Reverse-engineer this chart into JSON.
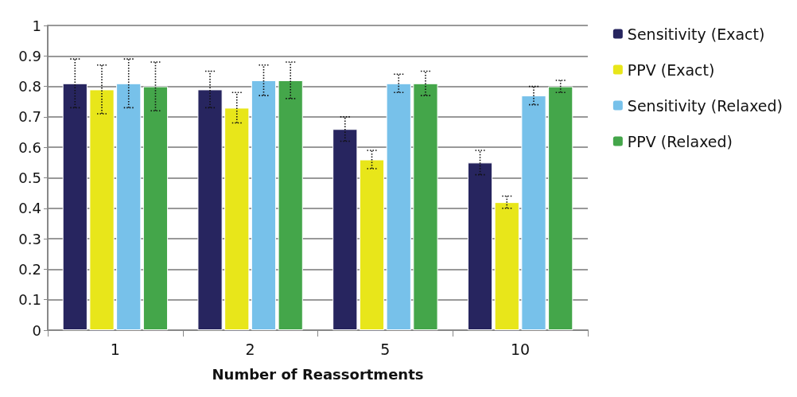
{
  "chart_data": {
    "type": "bar",
    "xlabel": "Number of Reassortments",
    "categories": [
      "1",
      "2",
      "5",
      "10"
    ],
    "series": [
      {
        "name": "Sensitivity (Exact)",
        "color": "#27255f",
        "values": [
          0.81,
          0.79,
          0.66,
          0.55
        ],
        "errors": [
          [
            0.73,
            0.89
          ],
          [
            0.73,
            0.85
          ],
          [
            0.62,
            0.7
          ],
          [
            0.51,
            0.59
          ]
        ]
      },
      {
        "name": "PPV (Exact)",
        "color": "#e8e61a",
        "values": [
          0.79,
          0.73,
          0.56,
          0.42
        ],
        "errors": [
          [
            0.71,
            0.87
          ],
          [
            0.68,
            0.78
          ],
          [
            0.53,
            0.59
          ],
          [
            0.4,
            0.44
          ]
        ]
      },
      {
        "name": "Sensitivity (Relaxed)",
        "color": "#77c1ea",
        "values": [
          0.81,
          0.82,
          0.81,
          0.77
        ],
        "errors": [
          [
            0.73,
            0.89
          ],
          [
            0.77,
            0.87
          ],
          [
            0.78,
            0.84
          ],
          [
            0.74,
            0.8
          ]
        ]
      },
      {
        "name": "PPV (Relaxed)",
        "color": "#44a64a",
        "values": [
          0.8,
          0.82,
          0.81,
          0.8
        ],
        "errors": [
          [
            0.72,
            0.88
          ],
          [
            0.76,
            0.88
          ],
          [
            0.77,
            0.85
          ],
          [
            0.78,
            0.82
          ]
        ]
      }
    ],
    "ylim": [
      0,
      1
    ],
    "yticks": [
      0,
      0.1,
      0.2,
      0.3,
      0.4,
      0.5,
      0.6,
      0.7,
      0.8,
      0.9,
      1
    ],
    "grid": "y",
    "legend": "right"
  }
}
